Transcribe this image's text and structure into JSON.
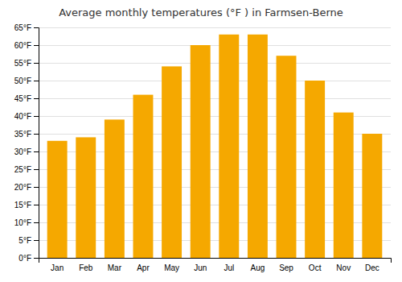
{
  "chart_data": {
    "type": "bar",
    "title": "Average monthly temperatures (°F ) in Farmsen-Berne",
    "categories": [
      "Jan",
      "Feb",
      "Mar",
      "Apr",
      "May",
      "Jun",
      "Jul",
      "Aug",
      "Sep",
      "Oct",
      "Nov",
      "Dec"
    ],
    "values": [
      33,
      34,
      39,
      46,
      54,
      60,
      63,
      63,
      57,
      50,
      41,
      35
    ],
    "color": "#F5A800",
    "ylim": [
      0,
      65
    ],
    "yticks": [
      {
        "value": 0,
        "label": "0°F"
      },
      {
        "value": 5,
        "label": "5°F"
      },
      {
        "value": 10,
        "label": "10°F"
      },
      {
        "value": 15,
        "label": "15°F"
      },
      {
        "value": 20,
        "label": "20°F"
      },
      {
        "value": 25,
        "label": "25°F"
      },
      {
        "value": 30,
        "label": "30°F"
      },
      {
        "value": 35,
        "label": "35°F"
      },
      {
        "value": 40,
        "label": "40°F"
      },
      {
        "value": 45,
        "label": "45°F"
      },
      {
        "value": 50,
        "label": "50°F"
      },
      {
        "value": 55,
        "label": "55°F"
      },
      {
        "value": 60,
        "label": "60°F"
      },
      {
        "value": 65,
        "label": "65°F"
      }
    ],
    "grid": true
  }
}
